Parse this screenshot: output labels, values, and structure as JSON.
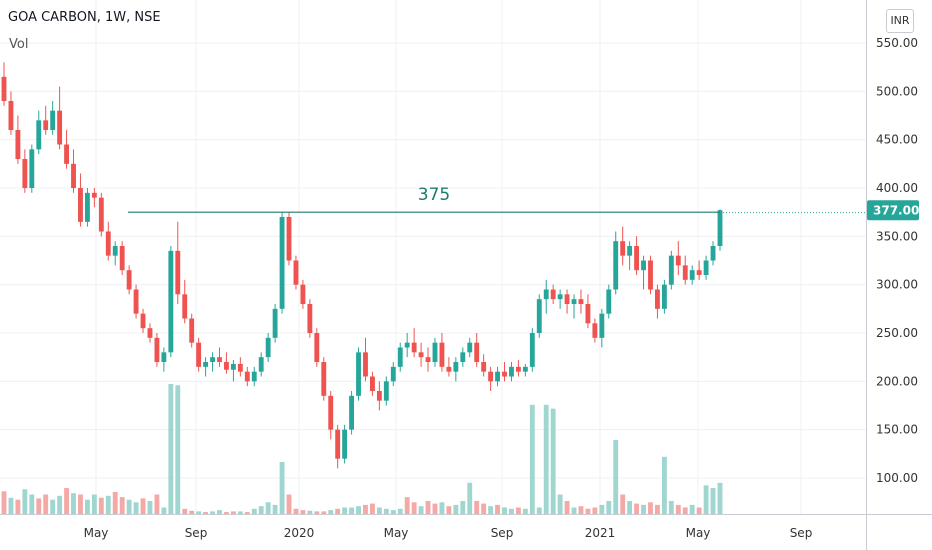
{
  "header": {
    "title": "GOA CARBON, 1W, NSE",
    "volume_label": "Vol",
    "currency": "INR"
  },
  "colors": {
    "up": "#26a69a",
    "down": "#ef5350",
    "vol_up": "#9fd6cf",
    "vol_down": "#f4a9a7",
    "line": "#1b7c6c",
    "grid": "#eef0f3"
  },
  "chart_data": {
    "type": "candlestick",
    "y_ticks": [
      "550.00",
      "500.00",
      "450.00",
      "400.00",
      "350.00",
      "300.00",
      "250.00",
      "200.00",
      "150.00",
      "100.00"
    ],
    "x_ticks": [
      "May",
      "Sep",
      "2020",
      "May",
      "Sep",
      "2021",
      "May",
      "Sep"
    ],
    "ylim": [
      50,
      570
    ],
    "last_price": "377.00",
    "annotation": {
      "label": "375",
      "value": 375
    },
    "candles": [
      [
        515,
        530,
        485,
        490
      ],
      [
        490,
        500,
        455,
        460
      ],
      [
        460,
        475,
        425,
        430
      ],
      [
        430,
        440,
        395,
        400
      ],
      [
        400,
        445,
        395,
        440
      ],
      [
        440,
        480,
        435,
        470
      ],
      [
        470,
        485,
        455,
        460
      ],
      [
        460,
        490,
        455,
        480
      ],
      [
        480,
        505,
        440,
        445
      ],
      [
        445,
        460,
        420,
        425
      ],
      [
        425,
        440,
        395,
        400
      ],
      [
        400,
        415,
        360,
        365
      ],
      [
        365,
        400,
        360,
        395
      ],
      [
        395,
        400,
        380,
        390
      ],
      [
        390,
        395,
        350,
        355
      ],
      [
        355,
        365,
        325,
        330
      ],
      [
        330,
        345,
        320,
        340
      ],
      [
        340,
        345,
        310,
        315
      ],
      [
        315,
        320,
        290,
        295
      ],
      [
        295,
        300,
        265,
        270
      ],
      [
        270,
        275,
        250,
        255
      ],
      [
        255,
        260,
        240,
        245
      ],
      [
        245,
        250,
        215,
        220
      ],
      [
        220,
        235,
        210,
        230
      ],
      [
        230,
        340,
        225,
        335
      ],
      [
        335,
        365,
        280,
        290
      ],
      [
        290,
        305,
        260,
        265
      ],
      [
        265,
        270,
        235,
        240
      ],
      [
        240,
        245,
        210,
        215
      ],
      [
        215,
        225,
        205,
        220
      ],
      [
        220,
        230,
        210,
        225
      ],
      [
        225,
        235,
        215,
        220
      ],
      [
        220,
        230,
        208,
        212
      ],
      [
        212,
        222,
        200,
        218
      ],
      [
        218,
        225,
        205,
        210
      ],
      [
        210,
        215,
        195,
        200
      ],
      [
        200,
        215,
        195,
        210
      ],
      [
        210,
        230,
        205,
        225
      ],
      [
        225,
        250,
        220,
        245
      ],
      [
        245,
        280,
        240,
        275
      ],
      [
        275,
        375,
        270,
        370
      ],
      [
        370,
        375,
        320,
        325
      ],
      [
        325,
        330,
        295,
        300
      ],
      [
        300,
        305,
        275,
        280
      ],
      [
        280,
        285,
        245,
        250
      ],
      [
        250,
        255,
        215,
        220
      ],
      [
        220,
        225,
        180,
        185
      ],
      [
        185,
        190,
        140,
        150
      ],
      [
        150,
        155,
        110,
        120
      ],
      [
        120,
        155,
        115,
        150
      ],
      [
        150,
        190,
        145,
        185
      ],
      [
        185,
        235,
        180,
        230
      ],
      [
        230,
        245,
        200,
        205
      ],
      [
        205,
        210,
        185,
        190
      ],
      [
        190,
        200,
        170,
        180
      ],
      [
        180,
        205,
        175,
        200
      ],
      [
        200,
        220,
        195,
        215
      ],
      [
        215,
        240,
        210,
        235
      ],
      [
        235,
        250,
        225,
        240
      ],
      [
        240,
        255,
        225,
        230
      ],
      [
        230,
        240,
        215,
        225
      ],
      [
        225,
        235,
        210,
        220
      ],
      [
        220,
        245,
        215,
        240
      ],
      [
        240,
        250,
        210,
        215
      ],
      [
        215,
        225,
        205,
        210
      ],
      [
        210,
        225,
        200,
        220
      ],
      [
        220,
        235,
        215,
        230
      ],
      [
        230,
        245,
        225,
        240
      ],
      [
        240,
        250,
        215,
        220
      ],
      [
        220,
        228,
        205,
        210
      ],
      [
        210,
        215,
        190,
        200
      ],
      [
        200,
        215,
        195,
        210
      ],
      [
        210,
        220,
        200,
        205
      ],
      [
        205,
        220,
        200,
        215
      ],
      [
        215,
        222,
        205,
        210
      ],
      [
        210,
        218,
        205,
        215
      ],
      [
        215,
        255,
        210,
        250
      ],
      [
        250,
        290,
        245,
        285
      ],
      [
        285,
        305,
        270,
        295
      ],
      [
        295,
        300,
        280,
        285
      ],
      [
        285,
        295,
        275,
        290
      ],
      [
        290,
        295,
        270,
        280
      ],
      [
        280,
        290,
        265,
        285
      ],
      [
        285,
        295,
        270,
        280
      ],
      [
        280,
        290,
        255,
        260
      ],
      [
        260,
        265,
        240,
        245
      ],
      [
        245,
        275,
        235,
        270
      ],
      [
        270,
        300,
        265,
        295
      ],
      [
        295,
        355,
        290,
        345
      ],
      [
        345,
        360,
        320,
        330
      ],
      [
        330,
        345,
        315,
        340
      ],
      [
        340,
        350,
        310,
        315
      ],
      [
        315,
        330,
        295,
        325
      ],
      [
        325,
        330,
        290,
        295
      ],
      [
        295,
        300,
        265,
        275
      ],
      [
        275,
        305,
        270,
        300
      ],
      [
        300,
        335,
        295,
        330
      ],
      [
        330,
        345,
        310,
        320
      ],
      [
        320,
        330,
        300,
        305
      ],
      [
        305,
        320,
        300,
        315
      ],
      [
        315,
        325,
        305,
        310
      ],
      [
        310,
        330,
        305,
        325
      ],
      [
        325,
        345,
        320,
        340
      ],
      [
        340,
        378,
        335,
        377
      ]
    ],
    "volumes": [
      [
        35,
        0
      ],
      [
        25,
        1
      ],
      [
        22,
        0
      ],
      [
        38,
        1
      ],
      [
        30,
        1
      ],
      [
        24,
        0
      ],
      [
        30,
        0
      ],
      [
        22,
        1
      ],
      [
        28,
        1
      ],
      [
        40,
        0
      ],
      [
        32,
        1
      ],
      [
        30,
        0
      ],
      [
        22,
        1
      ],
      [
        30,
        1
      ],
      [
        25,
        0
      ],
      [
        28,
        1
      ],
      [
        34,
        0
      ],
      [
        26,
        0
      ],
      [
        22,
        1
      ],
      [
        18,
        1
      ],
      [
        24,
        0
      ],
      [
        20,
        1
      ],
      [
        30,
        0
      ],
      [
        10,
        1
      ],
      [
        200,
        1
      ],
      [
        198,
        1
      ],
      [
        8,
        0
      ],
      [
        5,
        0
      ],
      [
        4,
        1
      ],
      [
        3,
        0
      ],
      [
        4,
        1
      ],
      [
        6,
        1
      ],
      [
        3,
        0
      ],
      [
        4,
        0
      ],
      [
        4,
        1
      ],
      [
        3,
        0
      ],
      [
        8,
        1
      ],
      [
        12,
        1
      ],
      [
        18,
        1
      ],
      [
        14,
        1
      ],
      [
        80,
        1
      ],
      [
        30,
        0
      ],
      [
        8,
        0
      ],
      [
        6,
        0
      ],
      [
        5,
        1
      ],
      [
        4,
        0
      ],
      [
        4,
        0
      ],
      [
        6,
        1
      ],
      [
        8,
        0
      ],
      [
        10,
        1
      ],
      [
        10,
        1
      ],
      [
        12,
        1
      ],
      [
        14,
        0
      ],
      [
        16,
        0
      ],
      [
        10,
        1
      ],
      [
        8,
        1
      ],
      [
        6,
        1
      ],
      [
        8,
        1
      ],
      [
        26,
        0
      ],
      [
        18,
        0
      ],
      [
        12,
        1
      ],
      [
        20,
        0
      ],
      [
        16,
        0
      ],
      [
        18,
        1
      ],
      [
        12,
        0
      ],
      [
        14,
        1
      ],
      [
        20,
        1
      ],
      [
        48,
        1
      ],
      [
        20,
        0
      ],
      [
        16,
        0
      ],
      [
        12,
        1
      ],
      [
        14,
        0
      ],
      [
        10,
        1
      ],
      [
        8,
        1
      ],
      [
        10,
        0
      ],
      [
        8,
        1
      ],
      [
        168,
        1
      ],
      [
        10,
        1
      ],
      [
        168,
        1
      ],
      [
        162,
        1
      ],
      [
        30,
        1
      ],
      [
        20,
        0
      ],
      [
        10,
        1
      ],
      [
        12,
        0
      ],
      [
        8,
        0
      ],
      [
        10,
        0
      ],
      [
        14,
        1
      ],
      [
        20,
        1
      ],
      [
        114,
        1
      ],
      [
        30,
        0
      ],
      [
        20,
        1
      ],
      [
        16,
        0
      ],
      [
        14,
        1
      ],
      [
        18,
        0
      ],
      [
        14,
        0
      ],
      [
        88,
        1
      ],
      [
        20,
        1
      ],
      [
        14,
        0
      ],
      [
        10,
        0
      ],
      [
        14,
        1
      ],
      [
        10,
        0
      ],
      [
        44,
        1
      ],
      [
        40,
        1
      ],
      [
        48,
        1
      ]
    ]
  }
}
